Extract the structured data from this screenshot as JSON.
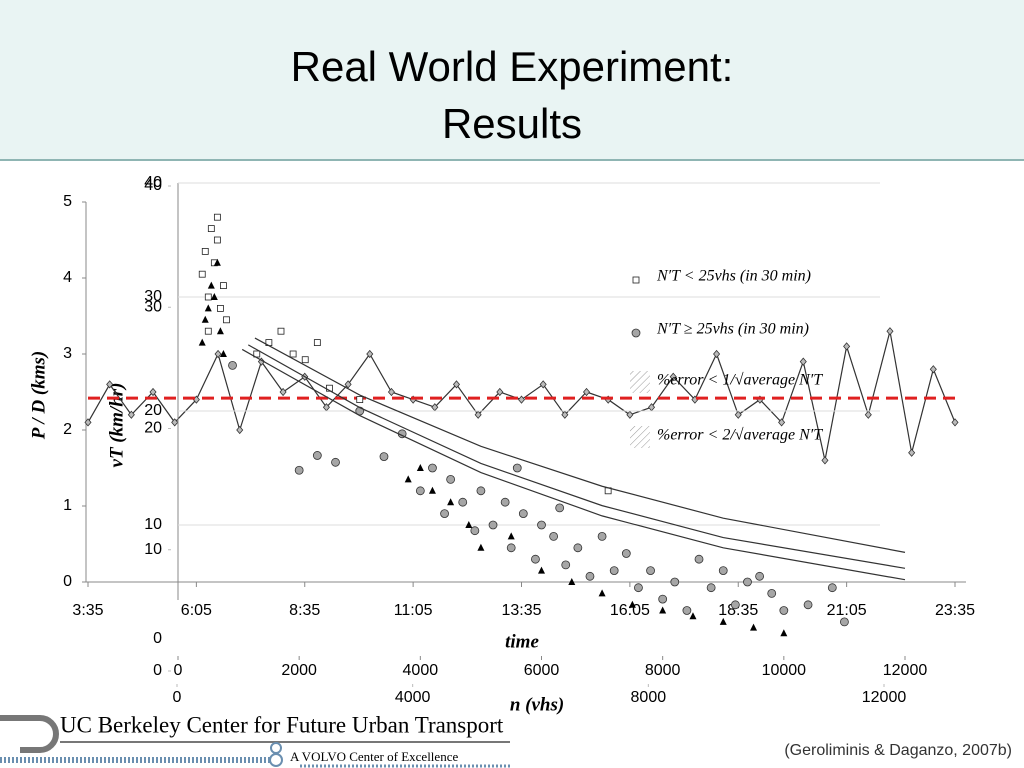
{
  "header": {
    "title": [
      "Real World Experiment:",
      "Results"
    ]
  },
  "chart_data": [
    {
      "type": "line",
      "ylabel": "P / D  (kms)",
      "xlabel": "time",
      "x": [
        "3:35",
        "4:05",
        "4:35",
        "5:05",
        "5:35",
        "6:05",
        "6:35",
        "7:05",
        "7:35",
        "8:05",
        "8:35",
        "9:05",
        "9:35",
        "10:05",
        "10:35",
        "11:05",
        "11:35",
        "12:05",
        "12:35",
        "13:05",
        "13:35",
        "14:05",
        "14:35",
        "15:05",
        "15:35",
        "16:05",
        "16:35",
        "17:05",
        "17:35",
        "18:05",
        "18:35",
        "19:05",
        "19:35",
        "20:05",
        "20:35",
        "21:05",
        "21:35",
        "22:05",
        "22:35",
        "23:05",
        "23:35"
      ],
      "series": [
        {
          "color": "#333333",
          "values": [
            2.1,
            2.6,
            2.2,
            2.5,
            2.1,
            2.4,
            3.0,
            2.0,
            2.9,
            2.5,
            2.7,
            2.3,
            2.6,
            3.0,
            2.5,
            2.4,
            2.3,
            2.6,
            2.2,
            2.5,
            2.4,
            2.6,
            2.2,
            2.5,
            2.4,
            2.2,
            2.3,
            2.7,
            2.4,
            3.0,
            2.2,
            2.4,
            2.1,
            2.9,
            1.6,
            3.1,
            2.2,
            3.3,
            1.7,
            2.8,
            2.1
          ]
        }
      ],
      "reference_line": {
        "value": 2.42,
        "color": "#e02020"
      },
      "xlim": [
        "3:35",
        "23:35"
      ],
      "xticks": [
        "3:35",
        "6:05",
        "8:35",
        "11:05",
        "13:35",
        "16:05",
        "18:35",
        "21:05",
        "23:35"
      ],
      "ylim": [
        0,
        5
      ],
      "yticks": [
        0,
        1,
        2,
        3,
        4,
        5
      ]
    },
    {
      "type": "scatter",
      "ylabel": "vT (km/hr)",
      "xlabel": "n (vhs)",
      "xlim": [
        0,
        12000
      ],
      "xticks": [
        0,
        2000,
        4000,
        6000,
        8000,
        10000,
        12000
      ],
      "ylim": [
        0,
        40
      ],
      "yticks": [
        0,
        10,
        20,
        30,
        40
      ],
      "x2lim": [
        0,
        12000
      ],
      "x2ticks": [
        0,
        4000,
        8000,
        12000
      ],
      "y2lim": [
        0,
        40
      ],
      "y2ticks": [
        0,
        10,
        20,
        30,
        40
      ],
      "series": [
        {
          "name": "N′T < 25vhs (in 30 min)",
          "marker": "square",
          "color": "#ffffff",
          "x": [
            400,
            450,
            500,
            550,
            600,
            650,
            700,
            750,
            800,
            500,
            650,
            1500,
            1700,
            1900,
            2100,
            2300,
            2500,
            3000,
            7100,
            1300
          ],
          "values": [
            32,
            34,
            30,
            36,
            33,
            35,
            29,
            31,
            28,
            27,
            37,
            26,
            27,
            25,
            24.5,
            26,
            22,
            21,
            13,
            25
          ]
        },
        {
          "name": "N′T  ≥ 25vhs (in 30 min)",
          "marker": "circle",
          "color": "#a6a6a6",
          "x": [
            900,
            2000,
            2300,
            2600,
            3000,
            3400,
            3700,
            4000,
            4200,
            4400,
            4500,
            4700,
            4900,
            5000,
            5200,
            5400,
            5500,
            5700,
            5900,
            6000,
            6200,
            6400,
            6600,
            6800,
            7000,
            7200,
            7400,
            7600,
            7800,
            8000,
            8200,
            8400,
            8600,
            8800,
            9000,
            9200,
            9400,
            9600,
            9800,
            10000,
            10400,
            10800,
            11000,
            5600,
            6300
          ],
          "values": [
            24,
            14.8,
            16.1,
            15.5,
            20,
            16,
            18,
            13,
            15,
            11,
            14,
            12,
            9.5,
            13,
            10,
            12,
            8,
            11,
            7,
            10,
            9,
            6.5,
            8,
            5.5,
            9,
            6,
            7.5,
            4.5,
            6,
            3.5,
            5,
            2.5,
            7,
            4.5,
            6,
            3,
            5,
            5.5,
            4,
            2.5,
            3,
            4.5,
            1.5,
            15,
            11.5
          ]
        },
        {
          "marker": "triangle",
          "color": "#000000",
          "x": [
            400,
            450,
            500,
            550,
            600,
            650,
            700,
            750,
            4000,
            4200,
            4500,
            4800,
            5000,
            5500,
            6000,
            6500,
            7000,
            7500,
            8000,
            8500,
            9000,
            9500,
            10000,
            3800
          ],
          "values": [
            26,
            28,
            29,
            31,
            30,
            33,
            27,
            25,
            15,
            13,
            12,
            10,
            8,
            9,
            6,
            5,
            4,
            3,
            2.5,
            2,
            1.5,
            1,
            0.5,
            14
          ]
        },
        {
          "marker": "line",
          "color": "#333333",
          "x": [
            1270,
            3000,
            5000,
            7000,
            9000,
            12000
          ],
          "values": [
            26.4,
            21.4,
            16.9,
            13.4,
            10.6,
            7.6
          ]
        },
        {
          "marker": "line",
          "color": "#333333",
          "x": [
            1160,
            3000,
            5000,
            7000,
            9000,
            12000
          ],
          "values": [
            25.8,
            20.3,
            15.4,
            11.7,
            8.9,
            6.2
          ]
        },
        {
          "marker": "line",
          "color": "#333333",
          "x": [
            1060,
            3000,
            5000,
            7000,
            9000,
            12000
          ],
          "values": [
            25.4,
            19.6,
            14.6,
            10.8,
            8.0,
            5.2
          ]
        }
      ],
      "band_labels": [
        "%error < 1/√average N′T",
        "%error < 2/√average N′T"
      ]
    }
  ],
  "footer": {
    "logo": "UC Berkeley Center for Future Urban Transport",
    "tagline": "A VOLVO Center of Excellence",
    "citation": "(Geroliminis & Daganzo, 2007b)"
  }
}
